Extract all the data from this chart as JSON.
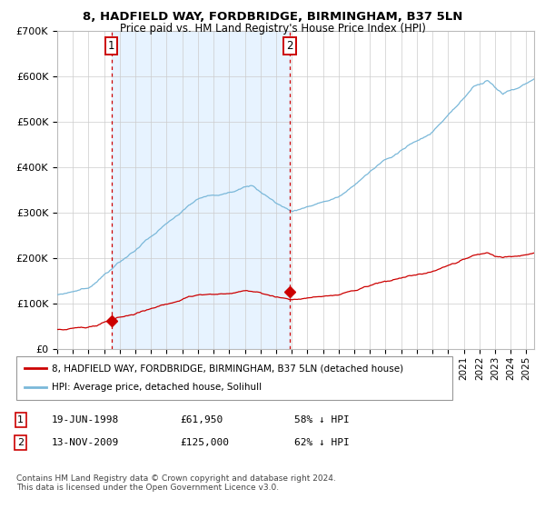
{
  "title1": "8, HADFIELD WAY, FORDBRIDGE, BIRMINGHAM, B37 5LN",
  "title2": "Price paid vs. HM Land Registry's House Price Index (HPI)",
  "legend_line1": "8, HADFIELD WAY, FORDBRIDGE, BIRMINGHAM, B37 5LN (detached house)",
  "legend_line2": "HPI: Average price, detached house, Solihull",
  "annotation1_date": "19-JUN-1998",
  "annotation1_price": "£61,950",
  "annotation1_hpi": "58% ↓ HPI",
  "annotation2_date": "13-NOV-2009",
  "annotation2_price": "£125,000",
  "annotation2_hpi": "62% ↓ HPI",
  "footnote": "Contains HM Land Registry data © Crown copyright and database right 2024.\nThis data is licensed under the Open Government Licence v3.0.",
  "hpi_color": "#7ab8d9",
  "price_color": "#cc0000",
  "marker_color": "#cc0000",
  "vline_color": "#cc0000",
  "bg_shade_color": "#ddeeff",
  "box_color": "#cc0000",
  "ylim": [
    0,
    700000
  ],
  "yticks": [
    0,
    100000,
    200000,
    300000,
    400000,
    500000,
    600000,
    700000
  ],
  "ytick_labels": [
    "£0",
    "£100K",
    "£200K",
    "£300K",
    "£400K",
    "£500K",
    "£600K",
    "£700K"
  ],
  "sale1_year": 1998.47,
  "sale1_price": 61950,
  "sale2_year": 2009.87,
  "sale2_price": 125000,
  "xmin": 1995.0,
  "xmax": 2025.5
}
